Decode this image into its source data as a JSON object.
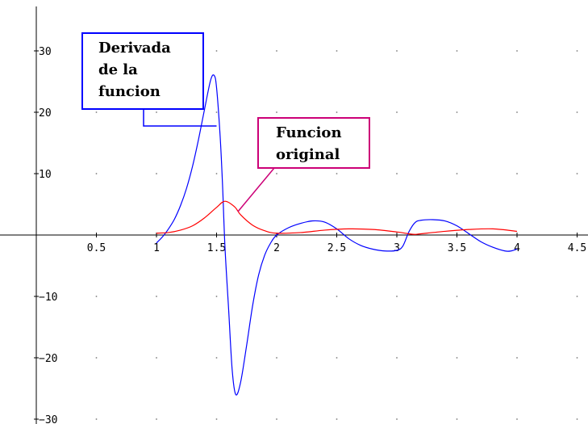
{
  "chart_data": {
    "type": "line",
    "title": "",
    "xlabel": "",
    "ylabel": "",
    "xlim": [
      -0.1,
      4.6
    ],
    "ylim": [
      -30,
      35
    ],
    "grid": "dots",
    "x_ticks": [
      {
        "value": 0.5,
        "label": "0.5"
      },
      {
        "value": 1,
        "label": "1"
      },
      {
        "value": 1.5,
        "label": "1.5"
      },
      {
        "value": 2,
        "label": "2"
      },
      {
        "value": 2.5,
        "label": "2.5"
      },
      {
        "value": 3,
        "label": "3"
      },
      {
        "value": 3.5,
        "label": "3.5"
      },
      {
        "value": 4,
        "label": "4"
      },
      {
        "value": 4.5,
        "label": "4.5"
      }
    ],
    "y_ticks": [
      {
        "value": 30,
        "label": "30"
      },
      {
        "value": 20,
        "label": "20"
      },
      {
        "value": 10,
        "label": "10"
      },
      {
        "value": -10,
        "label": "−10"
      },
      {
        "value": -20,
        "label": "−20"
      },
      {
        "value": -30,
        "label": "−30"
      }
    ],
    "series": [
      {
        "color": "#0000ff",
        "points": [
          [
            1.0,
            -1.3
          ],
          [
            1.05,
            -0.3
          ],
          [
            1.1,
            1.0
          ],
          [
            1.15,
            2.6
          ],
          [
            1.2,
            4.8
          ],
          [
            1.25,
            7.6
          ],
          [
            1.3,
            11.2
          ],
          [
            1.35,
            15.6
          ],
          [
            1.4,
            20.5
          ],
          [
            1.45,
            25.2
          ],
          [
            1.48,
            26.0
          ],
          [
            1.5,
            24.0
          ],
          [
            1.53,
            16.0
          ],
          [
            1.55,
            8.0
          ],
          [
            1.57,
            -2.0
          ],
          [
            1.6,
            -12.0
          ],
          [
            1.63,
            -22.0
          ],
          [
            1.66,
            -26.0
          ],
          [
            1.7,
            -24.0
          ],
          [
            1.75,
            -18.0
          ],
          [
            1.8,
            -11.5
          ],
          [
            1.85,
            -6.5
          ],
          [
            1.9,
            -3.3
          ],
          [
            1.95,
            -1.3
          ],
          [
            2.0,
            0.0
          ],
          [
            2.1,
            1.2
          ],
          [
            2.2,
            1.9
          ],
          [
            2.3,
            2.3
          ],
          [
            2.4,
            2.1
          ],
          [
            2.5,
            1.0
          ],
          [
            2.6,
            -0.6
          ],
          [
            2.7,
            -1.7
          ],
          [
            2.8,
            -2.3
          ],
          [
            2.9,
            -2.6
          ],
          [
            3.0,
            -2.5
          ],
          [
            3.05,
            -1.8
          ],
          [
            3.1,
            0.5
          ],
          [
            3.15,
            2.0
          ],
          [
            3.2,
            2.4
          ],
          [
            3.3,
            2.5
          ],
          [
            3.4,
            2.3
          ],
          [
            3.5,
            1.5
          ],
          [
            3.6,
            0.2
          ],
          [
            3.7,
            -1.1
          ],
          [
            3.8,
            -2.0
          ],
          [
            3.9,
            -2.6
          ],
          [
            3.95,
            -2.6
          ],
          [
            4.0,
            -2.3
          ]
        ]
      },
      {
        "color": "#ff0000",
        "points": [
          [
            1.0,
            0.3
          ],
          [
            1.1,
            0.4
          ],
          [
            1.2,
            0.8
          ],
          [
            1.3,
            1.5
          ],
          [
            1.4,
            2.8
          ],
          [
            1.5,
            4.5
          ],
          [
            1.57,
            5.5
          ],
          [
            1.65,
            4.6
          ],
          [
            1.7,
            3.3
          ],
          [
            1.8,
            1.6
          ],
          [
            1.9,
            0.7
          ],
          [
            2.0,
            0.3
          ],
          [
            2.2,
            0.4
          ],
          [
            2.4,
            0.8
          ],
          [
            2.6,
            1.0
          ],
          [
            2.8,
            0.9
          ],
          [
            3.0,
            0.5
          ],
          [
            3.1,
            0.2
          ],
          [
            3.15,
            0.1
          ],
          [
            3.2,
            0.2
          ],
          [
            3.4,
            0.6
          ],
          [
            3.6,
            0.9
          ],
          [
            3.8,
            1.0
          ],
          [
            4.0,
            0.6
          ]
        ]
      }
    ],
    "annotations": [
      {
        "lines": [
          "Derivada",
          "de la",
          "funcion"
        ],
        "color": "#0000ff",
        "points_to_series": 0
      },
      {
        "lines": [
          "Funcion",
          "original"
        ],
        "color": "#cc0077",
        "points_to_series": 1
      }
    ]
  }
}
